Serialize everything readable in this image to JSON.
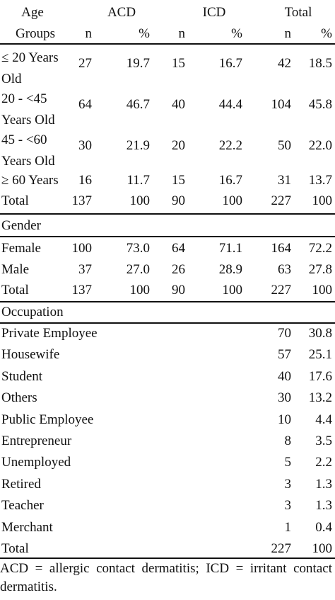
{
  "header": {
    "col1_label": "Age\nGroups",
    "groups": [
      "ACD",
      "ICD",
      "Total"
    ],
    "sub": [
      "n",
      "%",
      "n",
      "%",
      "n",
      "%"
    ]
  },
  "age": {
    "rows": [
      {
        "label": "≤ 20 Years\nOld",
        "vals": [
          "27",
          "19.7",
          "15",
          "16.7",
          "42",
          "18.5"
        ]
      },
      {
        "label": "20 - <45\nYears Old",
        "vals": [
          "64",
          "46.7",
          "40",
          "44.4",
          "104",
          "45.8"
        ]
      },
      {
        "label": "45 - <60\nYears Old",
        "vals": [
          "30",
          "21.9",
          "20",
          "22.2",
          "50",
          "22.0"
        ]
      },
      {
        "label": "≥ 60 Years",
        "vals": [
          "16",
          "11.7",
          "15",
          "16.7",
          "31",
          "13.7"
        ]
      },
      {
        "label": "Total",
        "vals": [
          "137",
          "100",
          "90",
          "100",
          "227",
          "100"
        ]
      }
    ]
  },
  "gender": {
    "title": "Gender",
    "rows": [
      {
        "label": "Female",
        "vals": [
          "100",
          "73.0",
          "64",
          "71.1",
          "164",
          "72.2"
        ]
      },
      {
        "label": "Male",
        "vals": [
          "37",
          "27.0",
          "26",
          "28.9",
          "63",
          "27.8"
        ]
      },
      {
        "label": "Total",
        "vals": [
          "137",
          "100",
          "90",
          "100",
          "227",
          "100"
        ]
      }
    ]
  },
  "occupation": {
    "title": "Occupation",
    "rows": [
      {
        "label": "Private Employee",
        "vals": [
          "",
          "",
          "",
          "",
          "70",
          "30.8"
        ]
      },
      {
        "label": "Housewife",
        "vals": [
          "",
          "",
          "",
          "",
          "57",
          "25.1"
        ]
      },
      {
        "label": "Student",
        "vals": [
          "",
          "",
          "",
          "",
          "40",
          "17.6"
        ]
      },
      {
        "label": "Others",
        "vals": [
          "",
          "",
          "",
          "",
          "30",
          "13.2"
        ]
      },
      {
        "label": "Public Employee",
        "vals": [
          "",
          "",
          "",
          "",
          "10",
          "4.4"
        ]
      },
      {
        "label": "Entrepreneur",
        "vals": [
          "",
          "",
          "",
          "",
          "8",
          "3.5"
        ]
      },
      {
        "label": "Unemployed",
        "vals": [
          "",
          "",
          "",
          "",
          "5",
          "2.2"
        ]
      },
      {
        "label": "Retired",
        "vals": [
          "",
          "",
          "",
          "",
          "3",
          "1.3"
        ]
      },
      {
        "label": "Teacher",
        "vals": [
          "",
          "",
          "",
          "",
          "3",
          "1.3"
        ]
      },
      {
        "label": "Merchant",
        "vals": [
          "",
          "",
          "",
          "",
          "1",
          "0.4"
        ]
      },
      {
        "label": "Total",
        "vals": [
          "",
          "",
          "",
          "",
          "227",
          "100"
        ]
      }
    ]
  },
  "footnote": "ACD = allergic contact dermatitis; ICD = irritant contact dermatitis."
}
